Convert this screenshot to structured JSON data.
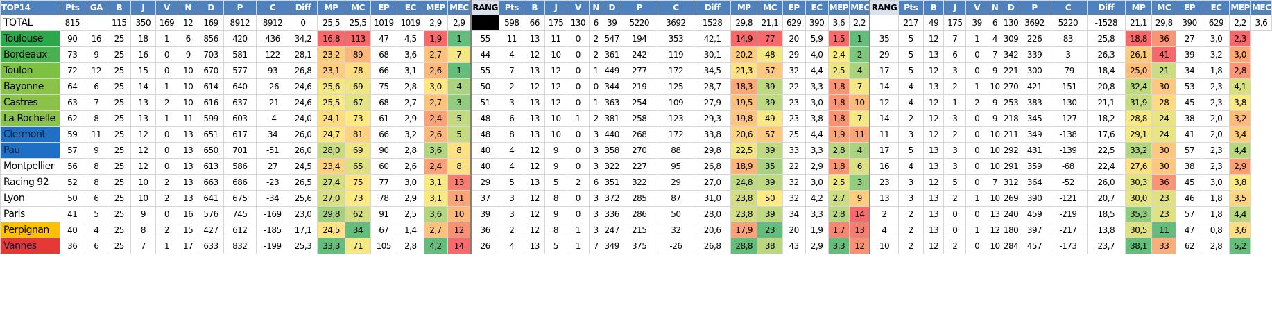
{
  "colors": {
    "header_bg": "#4f81bd",
    "header_text": "#ffffff",
    "rang_header_bg": "#d9e1ef",
    "scale_low": "#f8696b",
    "scale_mid": "#ffeb84",
    "scale_high": "#63be7b"
  },
  "headers": [
    "TOP14",
    "Pts",
    "GA",
    "B",
    "J",
    "V",
    "N",
    "D",
    "P",
    "C",
    "Diff",
    "MP",
    "MC",
    "EP",
    "EC",
    "MEP",
    "MEC",
    "RANG",
    "Pts",
    "B",
    "J",
    "V",
    "N",
    "D",
    "P",
    "C",
    "Diff",
    "MP",
    "MC",
    "EP",
    "EC",
    "MEP",
    "MEC",
    "RANG",
    "Pts",
    "B",
    "J",
    "V",
    "N",
    "D",
    "P",
    "C",
    "Diff",
    "MP",
    "MC",
    "EP",
    "EC",
    "MEP",
    "MEC"
  ],
  "total_row": [
    "TOTAL",
    "815",
    "",
    "115",
    "350",
    "169",
    "12",
    "169",
    "8912",
    "8912",
    "0",
    "25,5",
    "25,5",
    "1019",
    "1019",
    "2,9",
    "2,9",
    "",
    "598",
    "66",
    "175",
    "130",
    "6",
    "39",
    "5220",
    "3692",
    "1528",
    "29,8",
    "21,1",
    "629",
    "390",
    "3,6",
    "2,2",
    "",
    "217",
    "49",
    "175",
    "39",
    "6",
    "130",
    "3692",
    "5220",
    "-1528",
    "21,1",
    "29,8",
    "390",
    "629",
    "2,2",
    "3,6"
  ],
  "teams": [
    {
      "name": "Toulouse",
      "color": "#2ba84a",
      "cells": [
        "90",
        "16",
        "25",
        "18",
        "1",
        "6",
        "856",
        "420",
        "436",
        "34,2",
        "16,8",
        "113",
        "47",
        "4,5",
        "1,9",
        "1",
        "55",
        "11",
        "13",
        "11",
        "0",
        "2",
        "547",
        "194",
        "353",
        "42,1",
        "14,9",
        "77",
        "20",
        "5,9",
        "1,5",
        "1",
        "35",
        "5",
        "12",
        "7",
        "1",
        "4",
        "309",
        "226",
        "83",
        "25,8",
        "18,8",
        "36",
        "27",
        "3,0",
        "2,3"
      ]
    },
    {
      "name": "Bordeaux",
      "color": "#4caf50",
      "cells": [
        "73",
        "9",
        "25",
        "16",
        "0",
        "9",
        "703",
        "581",
        "122",
        "28,1",
        "23,2",
        "89",
        "68",
        "3,6",
        "2,7",
        "7",
        "44",
        "4",
        "12",
        "10",
        "0",
        "2",
        "361",
        "242",
        "119",
        "30,1",
        "20,2",
        "48",
        "29",
        "4,0",
        "2,4",
        "2",
        "29",
        "5",
        "13",
        "6",
        "0",
        "7",
        "342",
        "339",
        "3",
        "26,3",
        "26,1",
        "41",
        "39",
        "3,2",
        "3,0"
      ]
    },
    {
      "name": "Toulon",
      "color": "#7cc142",
      "cells": [
        "72",
        "12",
        "25",
        "15",
        "0",
        "10",
        "670",
        "577",
        "93",
        "26,8",
        "23,1",
        "78",
        "66",
        "3,1",
        "2,6",
        "1",
        "55",
        "7",
        "13",
        "12",
        "0",
        "1",
        "449",
        "277",
        "172",
        "34,5",
        "21,3",
        "57",
        "32",
        "4,4",
        "2,5",
        "4",
        "17",
        "5",
        "12",
        "3",
        "0",
        "9",
        "221",
        "300",
        "-79",
        "18,4",
        "25,0",
        "21",
        "34",
        "1,8",
        "2,8"
      ]
    },
    {
      "name": "Bayonne",
      "color": "#8bc34a",
      "cells": [
        "64",
        "6",
        "25",
        "14",
        "1",
        "10",
        "614",
        "640",
        "-26",
        "24,6",
        "25,6",
        "69",
        "75",
        "2,8",
        "3,0",
        "4",
        "50",
        "2",
        "12",
        "12",
        "0",
        "0",
        "344",
        "219",
        "125",
        "28,7",
        "18,3",
        "39",
        "22",
        "3,3",
        "1,8",
        "7",
        "14",
        "4",
        "13",
        "2",
        "1",
        "10",
        "270",
        "421",
        "-151",
        "20,8",
        "32,4",
        "30",
        "53",
        "2,3",
        "4,1"
      ]
    },
    {
      "name": "Castres",
      "color": "#8bc34a",
      "cells": [
        "63",
        "7",
        "25",
        "13",
        "2",
        "10",
        "616",
        "637",
        "-21",
        "24,6",
        "25,5",
        "67",
        "68",
        "2,7",
        "2,7",
        "3",
        "51",
        "3",
        "13",
        "12",
        "0",
        "1",
        "363",
        "254",
        "109",
        "27,9",
        "19,5",
        "39",
        "23",
        "3,0",
        "1,8",
        "10",
        "12",
        "4",
        "12",
        "1",
        "2",
        "9",
        "253",
        "383",
        "-130",
        "21,1",
        "31,9",
        "28",
        "45",
        "2,3",
        "3,8"
      ]
    },
    {
      "name": "La Rochelle",
      "color": "#8bc34a",
      "cells": [
        "62",
        "8",
        "25",
        "13",
        "1",
        "11",
        "599",
        "603",
        "-4",
        "24,0",
        "24,1",
        "73",
        "61",
        "2,9",
        "2,4",
        "5",
        "48",
        "6",
        "13",
        "10",
        "1",
        "2",
        "381",
        "258",
        "123",
        "29,3",
        "19,8",
        "49",
        "23",
        "3,8",
        "1,8",
        "7",
        "14",
        "2",
        "12",
        "3",
        "0",
        "9",
        "218",
        "345",
        "-127",
        "18,2",
        "28,8",
        "24",
        "38",
        "2,0",
        "3,2"
      ]
    },
    {
      "name": "Clermont",
      "color": "#1f6fc5",
      "cells": [
        "59",
        "11",
        "25",
        "12",
        "0",
        "13",
        "651",
        "617",
        "34",
        "26,0",
        "24,7",
        "81",
        "66",
        "3,2",
        "2,6",
        "5",
        "48",
        "8",
        "13",
        "10",
        "0",
        "3",
        "440",
        "268",
        "172",
        "33,8",
        "20,6",
        "57",
        "25",
        "4,4",
        "1,9",
        "11",
        "11",
        "3",
        "12",
        "2",
        "0",
        "10",
        "211",
        "349",
        "-138",
        "17,6",
        "29,1",
        "24",
        "41",
        "2,0",
        "3,4"
      ]
    },
    {
      "name": "Pau",
      "color": "#1f6fc5",
      "cells": [
        "57",
        "9",
        "25",
        "12",
        "0",
        "13",
        "650",
        "701",
        "-51",
        "26,0",
        "28,0",
        "69",
        "90",
        "2,8",
        "3,6",
        "8",
        "40",
        "4",
        "12",
        "9",
        "0",
        "3",
        "358",
        "270",
        "88",
        "29,8",
        "22,5",
        "39",
        "33",
        "3,3",
        "2,8",
        "4",
        "17",
        "5",
        "13",
        "3",
        "0",
        "10",
        "292",
        "431",
        "-139",
        "22,5",
        "33,2",
        "30",
        "57",
        "2,3",
        "4,4"
      ]
    },
    {
      "name": "Montpellier",
      "color": "#ffffff",
      "cells": [
        "56",
        "8",
        "25",
        "12",
        "0",
        "13",
        "613",
        "586",
        "27",
        "24,5",
        "23,4",
        "65",
        "60",
        "2,6",
        "2,4",
        "8",
        "40",
        "4",
        "12",
        "9",
        "0",
        "3",
        "322",
        "227",
        "95",
        "26,8",
        "18,9",
        "35",
        "22",
        "2,9",
        "1,8",
        "6",
        "16",
        "4",
        "13",
        "3",
        "0",
        "10",
        "291",
        "359",
        "-68",
        "22,4",
        "27,6",
        "30",
        "38",
        "2,3",
        "2,9"
      ]
    },
    {
      "name": "Racing 92",
      "color": "#ffffff",
      "cells": [
        "52",
        "8",
        "25",
        "10",
        "2",
        "13",
        "663",
        "686",
        "-23",
        "26,5",
        "27,4",
        "75",
        "77",
        "3,0",
        "3,1",
        "13",
        "29",
        "5",
        "13",
        "5",
        "2",
        "6",
        "351",
        "322",
        "29",
        "27,0",
        "24,8",
        "39",
        "32",
        "3,0",
        "2,5",
        "3",
        "23",
        "3",
        "12",
        "5",
        "0",
        "7",
        "312",
        "364",
        "-52",
        "26,0",
        "30,3",
        "36",
        "45",
        "3,0",
        "3,8"
      ]
    },
    {
      "name": "Lyon",
      "color": "#ffffff",
      "cells": [
        "50",
        "6",
        "25",
        "10",
        "2",
        "13",
        "641",
        "675",
        "-34",
        "25,6",
        "27,0",
        "73",
        "78",
        "2,9",
        "3,1",
        "11",
        "37",
        "3",
        "12",
        "8",
        "0",
        "3",
        "372",
        "285",
        "87",
        "31,0",
        "23,8",
        "50",
        "32",
        "4,2",
        "2,7",
        "9",
        "13",
        "3",
        "13",
        "2",
        "1",
        "10",
        "269",
        "390",
        "-121",
        "20,7",
        "30,0",
        "23",
        "46",
        "1,8",
        "3,5"
      ]
    },
    {
      "name": "Paris",
      "color": "#ffffff",
      "cells": [
        "41",
        "5",
        "25",
        "9",
        "0",
        "16",
        "576",
        "745",
        "-169",
        "23,0",
        "29,8",
        "62",
        "91",
        "2,5",
        "3,6",
        "10",
        "39",
        "3",
        "12",
        "9",
        "0",
        "3",
        "336",
        "286",
        "50",
        "28,0",
        "23,8",
        "39",
        "34",
        "3,3",
        "2,8",
        "14",
        "2",
        "2",
        "13",
        "0",
        "0",
        "13",
        "240",
        "459",
        "-219",
        "18,5",
        "35,3",
        "23",
        "57",
        "1,8",
        "4,4"
      ]
    },
    {
      "name": "Perpignan",
      "color": "#ffc000",
      "cells": [
        "40",
        "4",
        "25",
        "8",
        "2",
        "15",
        "427",
        "612",
        "-185",
        "17,1",
        "24,5",
        "34",
        "67",
        "1,4",
        "2,7",
        "12",
        "36",
        "2",
        "12",
        "8",
        "1",
        "3",
        "247",
        "215",
        "32",
        "20,6",
        "17,9",
        "23",
        "20",
        "1,9",
        "1,7",
        "13",
        "4",
        "2",
        "13",
        "0",
        "1",
        "12",
        "180",
        "397",
        "-217",
        "13,8",
        "30,5",
        "11",
        "47",
        "0,8",
        "3,6"
      ]
    },
    {
      "name": "Vannes",
      "color": "#e53935",
      "cells": [
        "36",
        "6",
        "25",
        "7",
        "1",
        "17",
        "633",
        "832",
        "-199",
        "25,3",
        "33,3",
        "71",
        "105",
        "2,8",
        "4,2",
        "14",
        "26",
        "4",
        "13",
        "5",
        "1",
        "7",
        "349",
        "375",
        "-26",
        "26,8",
        "28,8",
        "38",
        "43",
        "2,9",
        "3,3",
        "12",
        "10",
        "2",
        "12",
        "2",
        "0",
        "10",
        "284",
        "457",
        "-173",
        "23,7",
        "38,1",
        "33",
        "62",
        "2,8",
        "5,2"
      ]
    }
  ]
}
